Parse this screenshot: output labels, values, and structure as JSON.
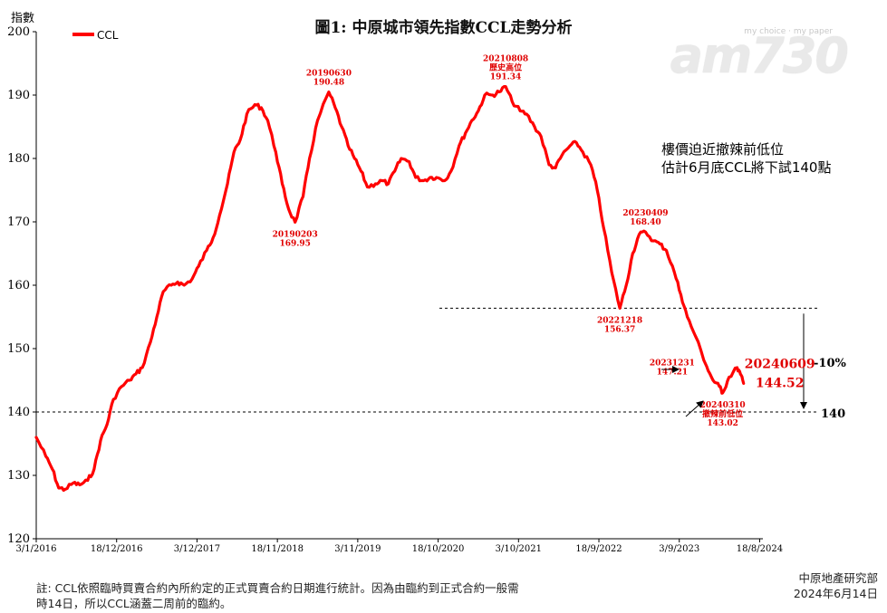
{
  "chart_data": {
    "type": "line",
    "title": "圖1: 中原城市領先指數CCL走勢分析",
    "ylabel": "指數",
    "ylim": [
      120,
      200
    ],
    "yticks": [
      120,
      130,
      140,
      150,
      160,
      170,
      180,
      190,
      200
    ],
    "xlim": [
      "2016-01-03",
      "2024-09-01"
    ],
    "xticks": [
      {
        "date": "2016-01-03",
        "label": "3/1/2016"
      },
      {
        "date": "2016-12-18",
        "label": "18/12/2016"
      },
      {
        "date": "2017-12-03",
        "label": "3/12/2017"
      },
      {
        "date": "2018-11-18",
        "label": "18/11/2018"
      },
      {
        "date": "2019-11-03",
        "label": "3/11/2019"
      },
      {
        "date": "2020-10-18",
        "label": "18/10/2020"
      },
      {
        "date": "2021-10-03",
        "label": "3/10/2021"
      },
      {
        "date": "2022-09-18",
        "label": "18/9/2022"
      },
      {
        "date": "2023-09-03",
        "label": "3/9/2023"
      },
      {
        "date": "2024-08-18",
        "label": "18/8/2024"
      }
    ],
    "legend": {
      "position": "top-left",
      "entries": [
        "CCL"
      ]
    },
    "series": [
      {
        "name": "CCL",
        "color": "#ff0000",
        "points": [
          [
            "2016-01-03",
            136.0
          ],
          [
            "2016-02-14",
            133.0
          ],
          [
            "2016-03-13",
            131.0
          ],
          [
            "2016-04-10",
            128.0
          ],
          [
            "2016-05-08",
            127.8
          ],
          [
            "2016-06-12",
            128.8
          ],
          [
            "2016-07-10",
            128.5
          ],
          [
            "2016-08-14",
            129.2
          ],
          [
            "2016-09-11",
            131.0
          ],
          [
            "2016-10-09",
            135.5
          ],
          [
            "2016-11-06",
            138.0
          ],
          [
            "2016-12-04",
            142.0
          ],
          [
            "2017-01-08",
            144.0
          ],
          [
            "2017-02-12",
            145.0
          ],
          [
            "2017-03-12",
            146.0
          ],
          [
            "2017-04-09",
            147.0
          ],
          [
            "2017-05-14",
            151.0
          ],
          [
            "2017-06-11",
            155.0
          ],
          [
            "2017-07-09",
            159.0
          ],
          [
            "2017-08-13",
            160.0
          ],
          [
            "2017-09-10",
            160.5
          ],
          [
            "2017-10-08",
            160.0
          ],
          [
            "2017-11-12",
            161.0
          ],
          [
            "2017-12-10",
            163.0
          ],
          [
            "2018-01-14",
            165.5
          ],
          [
            "2018-02-11",
            167.5
          ],
          [
            "2018-03-11",
            171.0
          ],
          [
            "2018-04-15",
            176.0
          ],
          [
            "2018-05-13",
            181.0
          ],
          [
            "2018-06-10",
            183.0
          ],
          [
            "2018-07-08",
            187.0
          ],
          [
            "2018-08-12",
            188.5
          ],
          [
            "2018-09-09",
            188.0
          ],
          [
            "2018-10-07",
            186.0
          ],
          [
            "2018-11-11",
            181.0
          ],
          [
            "2018-12-09",
            176.0
          ],
          [
            "2019-01-06",
            172.0
          ],
          [
            "2019-02-03",
            169.95
          ],
          [
            "2019-03-10",
            174.0
          ],
          [
            "2019-04-07",
            180.0
          ],
          [
            "2019-05-12",
            186.0
          ],
          [
            "2019-06-30",
            190.48
          ],
          [
            "2019-07-28",
            188.0
          ],
          [
            "2019-08-25",
            185.0
          ],
          [
            "2019-09-22",
            182.0
          ],
          [
            "2019-10-20",
            180.0
          ],
          [
            "2019-11-17",
            178.0
          ],
          [
            "2019-12-15",
            175.5
          ],
          [
            "2020-01-19",
            176.0
          ],
          [
            "2020-02-16",
            176.5
          ],
          [
            "2020-03-15",
            176.0
          ],
          [
            "2020-04-12",
            178.0
          ],
          [
            "2020-05-10",
            180.0
          ],
          [
            "2020-06-14",
            179.5
          ],
          [
            "2020-07-12",
            177.0
          ],
          [
            "2020-08-16",
            176.5
          ],
          [
            "2020-09-13",
            177.0
          ],
          [
            "2020-10-11",
            177.0
          ],
          [
            "2020-11-15",
            176.5
          ],
          [
            "2020-12-13",
            178.0
          ],
          [
            "2021-01-17",
            182.0
          ],
          [
            "2021-02-14",
            184.0
          ],
          [
            "2021-03-14",
            186.0
          ],
          [
            "2021-04-11",
            187.5
          ],
          [
            "2021-05-09",
            190.0
          ],
          [
            "2021-06-13",
            190.0
          ],
          [
            "2021-07-11",
            190.5
          ],
          [
            "2021-08-08",
            191.34
          ],
          [
            "2021-09-05",
            189.0
          ],
          [
            "2021-10-10",
            187.5
          ],
          [
            "2021-11-07",
            187.0
          ],
          [
            "2021-12-12",
            185.0
          ],
          [
            "2022-01-09",
            183.5
          ],
          [
            "2022-02-13",
            179.0
          ],
          [
            "2022-03-13",
            178.5
          ],
          [
            "2022-04-10",
            180.5
          ],
          [
            "2022-05-15",
            182.0
          ],
          [
            "2022-06-12",
            182.5
          ],
          [
            "2022-07-10",
            181.0
          ],
          [
            "2022-08-14",
            179.0
          ],
          [
            "2022-09-11",
            175.0
          ],
          [
            "2022-10-09",
            169.0
          ],
          [
            "2022-11-13",
            162.0
          ],
          [
            "2022-12-18",
            156.37
          ],
          [
            "2023-01-15",
            160.0
          ],
          [
            "2023-02-12",
            165.0
          ],
          [
            "2023-03-12",
            168.0
          ],
          [
            "2023-04-09",
            168.4
          ],
          [
            "2023-05-14",
            167.0
          ],
          [
            "2023-06-11",
            166.5
          ],
          [
            "2023-07-09",
            165.5
          ],
          [
            "2023-08-13",
            162.0
          ],
          [
            "2023-09-10",
            158.5
          ],
          [
            "2023-10-08",
            155.0
          ],
          [
            "2023-11-12",
            152.0
          ],
          [
            "2023-12-31",
            147.21
          ],
          [
            "2024-01-28",
            145.0
          ],
          [
            "2024-02-25",
            144.0
          ],
          [
            "2024-03-10",
            143.02
          ],
          [
            "2024-04-07",
            145.5
          ],
          [
            "2024-05-12",
            147.0
          ],
          [
            "2024-05-26",
            146.0
          ],
          [
            "2024-06-09",
            144.52
          ]
        ]
      }
    ],
    "annotations": [
      {
        "date": "20190630",
        "value": "190.48",
        "anchor": [
          "2019-06-30",
          190.48
        ],
        "pos": "above"
      },
      {
        "date": "20190203",
        "value": "169.95",
        "anchor": [
          "2019-02-03",
          169.95
        ],
        "pos": "below"
      },
      {
        "date": "20210808",
        "note": "歷史高位",
        "value": "191.34",
        "anchor": [
          "2021-08-08",
          191.34
        ],
        "pos": "above"
      },
      {
        "date": "20230409",
        "value": "168.40",
        "anchor": [
          "2023-04-09",
          168.4
        ],
        "pos": "above"
      },
      {
        "date": "20221218",
        "value": "156.37",
        "anchor": [
          "2022-12-18",
          156.37
        ],
        "pos": "below"
      },
      {
        "date": "20231231",
        "value": "147.21",
        "anchor": [
          "2023-12-31",
          147.21
        ],
        "pos": "left"
      },
      {
        "date": "20240310",
        "note": "撤辣前低位",
        "value": "143.02",
        "anchor": [
          "2024-03-10",
          143.02
        ],
        "pos": "below"
      },
      {
        "date": "20240609",
        "value": "144.52",
        "anchor": [
          "2024-06-09",
          144.52
        ],
        "pos": "right"
      }
    ],
    "reference_lines": [
      {
        "value": 156.37,
        "style": "dashed"
      },
      {
        "value": 140,
        "style": "dashed",
        "label": "140"
      }
    ],
    "drop_label": "-10%",
    "commentary": [
      "樓價迫近撤辣前低位",
      "估計6月底CCL將下試140點"
    ],
    "grid": false
  },
  "watermark": {
    "main": "am730",
    "sub": "my choice · my paper"
  },
  "footnote": [
    "註: CCL依照臨時買賣合約內所約定的正式買賣合約日期進行統計。因為由臨約到正式合約一般需",
    "時14日，所以CCL涵蓋二周前的臨約。"
  ],
  "source": {
    "org": "中原地產研究部",
    "date": "2024年6月14日"
  }
}
